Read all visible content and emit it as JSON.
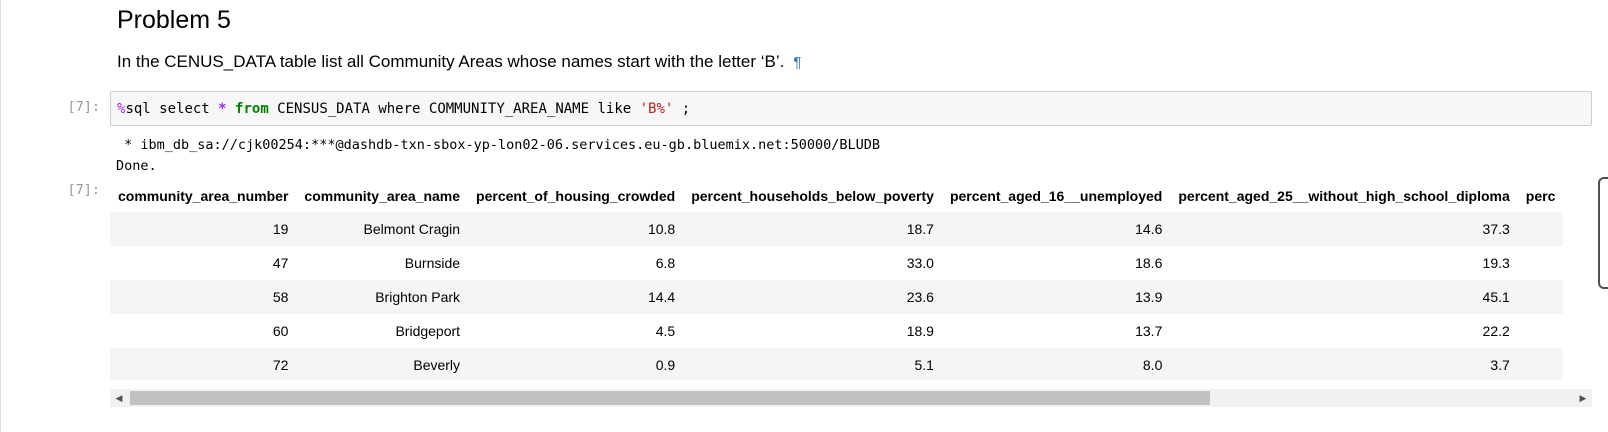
{
  "markdown": {
    "title": "Problem 5",
    "text": "In the CENUS_DATA table list all Community Areas whose names start with the letter ‘B’.",
    "pilcrow": "¶"
  },
  "cell": {
    "input_prompt": "[7]:",
    "output_prompt": "[7]:",
    "code_tokens": [
      {
        "text": "%",
        "cls": "tok-magic"
      },
      {
        "text": "sql select ",
        "cls": "tok-plain"
      },
      {
        "text": "*",
        "cls": "tok-op"
      },
      {
        "text": " ",
        "cls": "tok-plain"
      },
      {
        "text": "from",
        "cls": "tok-kw"
      },
      {
        "text": " CENSUS_DATA where COMMUNITY_AREA_NAME like ",
        "cls": "tok-plain"
      },
      {
        "text": "'B%'",
        "cls": "tok-str"
      },
      {
        "text": " ;",
        "cls": "tok-plain"
      }
    ],
    "stream_lines": [
      " * ibm_db_sa://cjk00254:***@dashdb-txn-sbox-yp-lon02-06.services.eu-gb.bluemix.net:50000/BLUDB",
      "Done."
    ]
  },
  "table": {
    "columns": [
      "community_area_number",
      "community_area_name",
      "percent_of_housing_crowded",
      "percent_households_below_poverty",
      "percent_aged_16__unemployed",
      "percent_aged_25__without_high_school_diploma",
      "perc"
    ],
    "rows": [
      [
        "19",
        "Belmont Cragin",
        "10.8",
        "18.7",
        "14.6",
        "37.3",
        ""
      ],
      [
        "47",
        "Burnside",
        "6.8",
        "33.0",
        "18.6",
        "19.3",
        ""
      ],
      [
        "58",
        "Brighton Park",
        "14.4",
        "23.6",
        "13.9",
        "45.1",
        ""
      ],
      [
        "60",
        "Bridgeport",
        "4.5",
        "18.9",
        "13.7",
        "22.2",
        ""
      ],
      [
        "72",
        "Beverly",
        "0.9",
        "5.1",
        "8.0",
        "3.7",
        ""
      ]
    ]
  },
  "scrollbar": {
    "left_arrow_icon": "triangle-left-icon",
    "right_arrow_icon": "triangle-right-icon",
    "position_fraction": 0.0
  }
}
